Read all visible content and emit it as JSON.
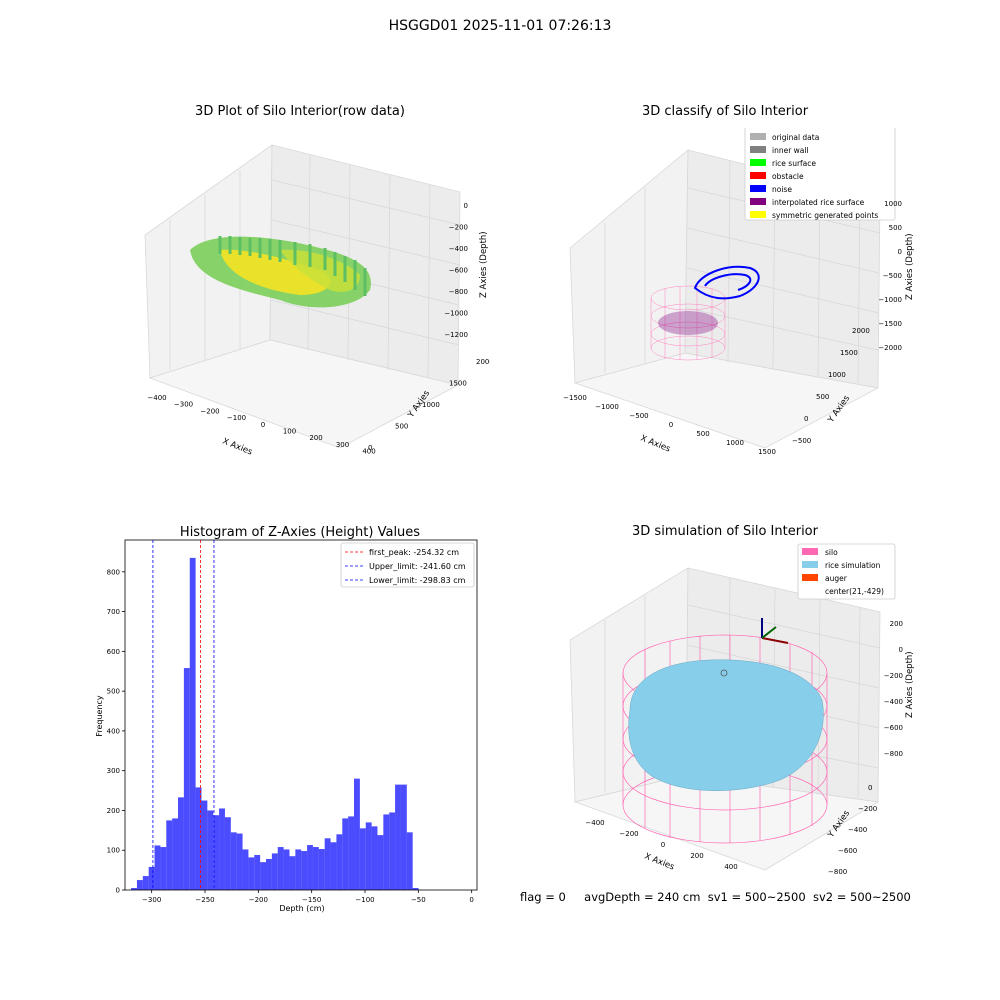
{
  "figure": {
    "title": "HSGGD01 2025-11-01 07:26:13",
    "footer": {
      "flag": "flag = 0",
      "avg_depth": "avgDepth = 240 cm",
      "sv1": "sv1 = 500~2500",
      "sv2": "sv2 = 500~2500"
    }
  },
  "panel_raw": {
    "title": "3D Plot of Silo Interior(row data)",
    "xlabel": "X Axies",
    "ylabel": "Y Axies",
    "zlabel": "Z Axies (Depth)",
    "xticks": [
      "−400",
      "−300",
      "−200",
      "−100",
      "0",
      "100",
      "200",
      "300",
      "400"
    ],
    "yticks": [
      "0",
      "500",
      "1000",
      "1500",
      "2000"
    ],
    "zticks": [
      "0",
      "−200",
      "−400",
      "−600",
      "−800",
      "−1000",
      "−1200"
    ],
    "colors": {
      "low": "#3cb46e",
      "high": "#f0e61e"
    }
  },
  "panel_classify": {
    "title": "3D classify of Silo Interior",
    "xlabel": "X Axies",
    "ylabel": "Y Axies",
    "zlabel": "Z Axies (Depth)",
    "xticks": [
      "−1500",
      "−1000",
      "−500",
      "0",
      "500",
      "1000",
      "1500"
    ],
    "yticks": [
      "−500",
      "0",
      "500",
      "1000",
      "1500",
      "2000"
    ],
    "zticks": [
      "1000",
      "500",
      "0",
      "−500",
      "−1000",
      "−1500",
      "−2000"
    ],
    "legend": [
      {
        "label": "original data",
        "color": "#b0b0b0"
      },
      {
        "label": "inner wall",
        "color": "#808080"
      },
      {
        "label": "rice surface",
        "color": "#00ff00"
      },
      {
        "label": "obstacle",
        "color": "#ff0000"
      },
      {
        "label": "noise",
        "color": "#0000ff"
      },
      {
        "label": "interpolated rice surface",
        "color": "#800080"
      },
      {
        "label": "symmetric generated points",
        "color": "#ffff00"
      }
    ]
  },
  "panel_sim": {
    "title": "3D simulation of Silo Interior",
    "xlabel": "X Axies",
    "ylabel": "Y Axies",
    "zlabel": "Z Axies (Depth)",
    "xticks": [
      "−400",
      "−200",
      "0",
      "200",
      "400"
    ],
    "yticks": [
      "0",
      "−200",
      "−400",
      "−600",
      "−800"
    ],
    "zticks": [
      "200",
      "0",
      "−200",
      "−400",
      "−600",
      "−800"
    ],
    "legend": [
      {
        "label": "silo",
        "color": "#ff69b4",
        "swatch": true
      },
      {
        "label": "rice simulation",
        "color": "#87ceeb",
        "swatch": true
      },
      {
        "label": "auger",
        "color": "#ff4500",
        "swatch": true
      },
      {
        "label": "center(21,-429)",
        "color": "",
        "swatch": false
      }
    ]
  },
  "chart_data": [
    {
      "type": "bar",
      "title": "Histogram of Z-Axies (Height) Values",
      "xlabel": "Depth (cm)",
      "ylabel": "Frequency",
      "xlim": [
        -325,
        5
      ],
      "ylim": [
        0,
        880
      ],
      "xticks": [
        -300,
        -250,
        -200,
        -150,
        -100,
        -50,
        0
      ],
      "yticks": [
        0,
        100,
        200,
        300,
        400,
        500,
        600,
        700,
        800
      ],
      "bar_color": "#0000ff",
      "bin_start": -319.3,
      "bin_width": 5.5,
      "values": [
        5,
        25,
        35,
        58,
        112,
        108,
        175,
        180,
        233,
        558,
        835,
        258,
        225,
        200,
        188,
        205,
        183,
        145,
        142,
        102,
        82,
        88,
        70,
        78,
        92,
        108,
        102,
        85,
        102,
        98,
        113,
        108,
        103,
        130,
        120,
        140,
        180,
        185,
        280,
        155,
        170,
        160,
        138,
        190,
        195,
        265,
        265,
        145,
        5
      ],
      "vlines": [
        {
          "label": "first_peak: -254.32 cm",
          "x": -254.32,
          "color": "#ff0000"
        },
        {
          "label": "Upper_limit: -241.60 cm",
          "x": -241.6,
          "color": "#0000ff"
        },
        {
          "label": "Lower_limit: -298.83 cm",
          "x": -298.83,
          "color": "#0000ff"
        }
      ],
      "legend_position": "top-right",
      "grid": false
    }
  ]
}
